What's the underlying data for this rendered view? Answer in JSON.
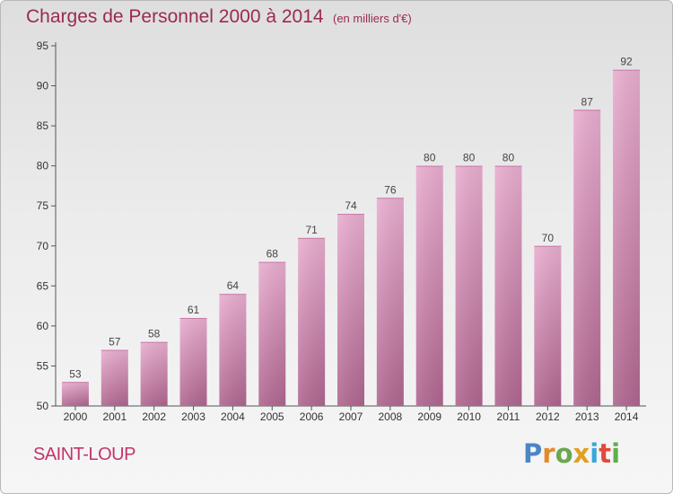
{
  "title": "Charges de Personnel 2000 à 2014",
  "subtitle": "(en milliers d'€)",
  "place": "SAINT-LOUP",
  "brand": [
    "P",
    "r",
    "o",
    "x",
    "i",
    "t",
    "i"
  ],
  "colors": {
    "bar_top": "#eaaed0",
    "bar_bottom": "#b0668f",
    "title": "#9a2a52",
    "place": "#c2336b"
  },
  "chart_data": {
    "type": "bar",
    "categories": [
      "2000",
      "2001",
      "2002",
      "2003",
      "2004",
      "2005",
      "2006",
      "2007",
      "2008",
      "2009",
      "2010",
      "2011",
      "2012",
      "2013",
      "2014"
    ],
    "values": [
      53,
      57,
      58,
      61,
      64,
      68,
      71,
      74,
      76,
      80,
      80,
      80,
      70,
      87,
      92
    ],
    "ylim": [
      50,
      95
    ],
    "yticks": [
      50,
      55,
      60,
      65,
      70,
      75,
      80,
      85,
      90,
      95
    ],
    "title": "Charges de Personnel 2000 à 2014",
    "subtitle": "(en milliers d'€)",
    "xlabel": "",
    "ylabel": "",
    "grid": false,
    "legend": "none"
  }
}
